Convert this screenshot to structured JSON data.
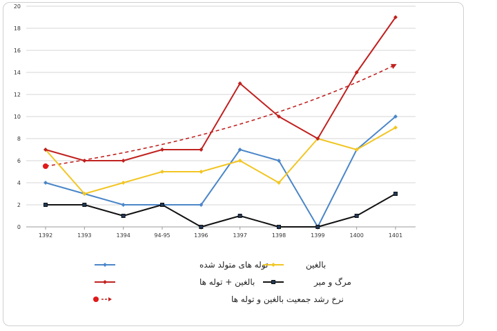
{
  "chart_data": {
    "type": "line",
    "categories": [
      "1392",
      "1393",
      "1394",
      "94-95",
      "1396",
      "1397",
      "1398",
      "1399",
      "1400",
      "1401"
    ],
    "ylim": [
      0,
      20
    ],
    "yticks": [
      0,
      2,
      4,
      6,
      8,
      10,
      12,
      14,
      16,
      18,
      20
    ],
    "grid": true,
    "legend_position": "bottom",
    "series": [
      {
        "name": "توله های متولد شده",
        "color": "#4a86c8",
        "marker": "diamond",
        "values": [
          4,
          3,
          2,
          2,
          2,
          7,
          6,
          0,
          7,
          10
        ]
      },
      {
        "name": "بالغین",
        "color": "#f2c521",
        "marker": "diamond",
        "values": [
          7,
          3,
          4,
          5,
          5,
          6,
          4,
          8,
          7,
          9
        ]
      },
      {
        "name": "بالغین + توله ها",
        "color": "#c0211f",
        "marker": "diamond",
        "values": [
          7,
          6,
          6,
          7,
          7,
          13,
          10,
          8,
          14,
          19
        ]
      },
      {
        "name": "مرگ و میر",
        "color": "#111111",
        "marker": "square",
        "values": [
          2,
          2,
          1,
          2,
          0,
          1,
          0,
          0,
          1,
          3
        ]
      }
    ],
    "trendline": {
      "name": "نرخ رشد جمعیت بالغین و توله ها",
      "color": "#c0211f",
      "start_value": 5.5,
      "end_value": 14.7
    }
  }
}
